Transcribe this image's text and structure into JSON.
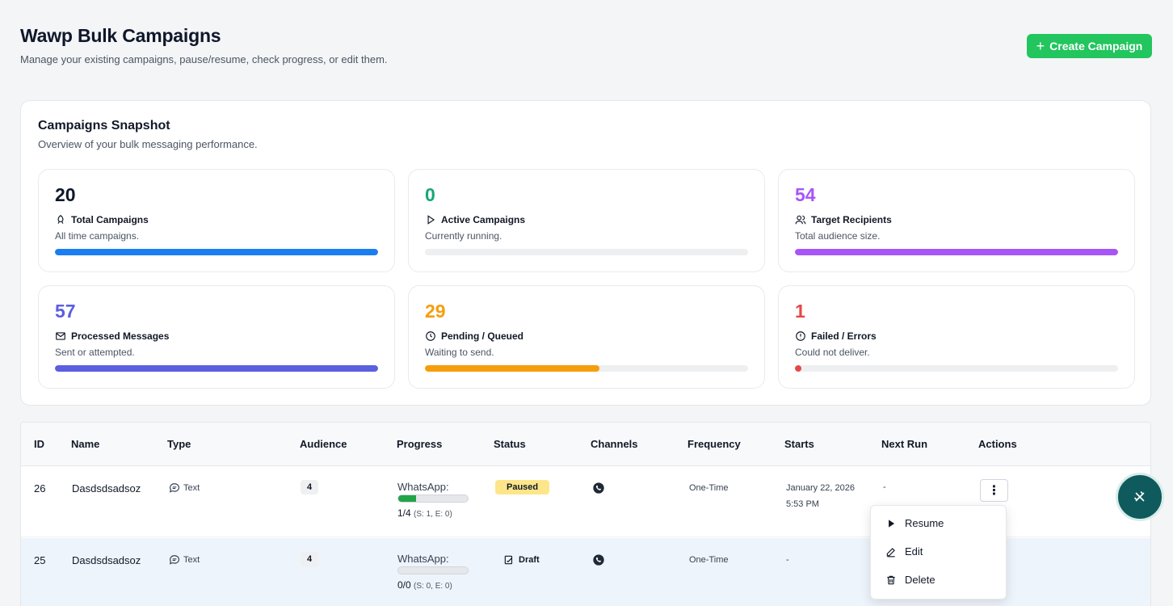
{
  "header": {
    "title": "Wawp Bulk Campaigns",
    "subtitle": "Manage your existing campaigns, pause/resume, check progress, or edit them.",
    "create_label": "Create Campaign"
  },
  "snapshot": {
    "title": "Campaigns Snapshot",
    "subtitle": "Overview of your bulk messaging performance.",
    "stats": [
      {
        "value": "20",
        "label": "Total Campaigns",
        "desc": "All time campaigns.",
        "color": "#0f172a",
        "bar_color": "#1a7ef2",
        "fill_fraction": 1.0,
        "icon": "rocket-icon"
      },
      {
        "value": "0",
        "label": "Active Campaigns",
        "desc": "Currently running.",
        "color": "#16a878",
        "bar_color": "#16a878",
        "fill_fraction": 0.0,
        "icon": "play-icon"
      },
      {
        "value": "54",
        "label": "Target Recipients",
        "desc": "Total audience size.",
        "color": "#a855f7",
        "bar_color": "#a855f7",
        "fill_fraction": 1.0,
        "icon": "users-icon"
      },
      {
        "value": "57",
        "label": "Processed Messages",
        "desc": "Sent or attempted.",
        "color": "#5b5fe0",
        "bar_color": "#5b5fe0",
        "fill_fraction": 1.0,
        "icon": "mail-icon"
      },
      {
        "value": "29",
        "label": "Pending / Queued",
        "desc": "Waiting to send.",
        "color": "#f59e0b",
        "bar_color": "#f59e0b",
        "fill_fraction": 0.54,
        "icon": "clock-icon"
      },
      {
        "value": "1",
        "label": "Failed / Errors",
        "desc": "Could not deliver.",
        "color": "#e54848",
        "bar_color": "#e54848",
        "fill_fraction": 0.02,
        "icon": "alert-icon"
      }
    ]
  },
  "table": {
    "columns": [
      "ID",
      "Name",
      "Type",
      "Audience",
      "Progress",
      "Status",
      "Channels",
      "Frequency",
      "Starts",
      "Next Run",
      "Actions"
    ],
    "rows": [
      {
        "id": "26",
        "name": "Dasdsdsadsoz",
        "type": "Text",
        "audience": "4",
        "progress_label": "WhatsApp:",
        "progress_fraction": 0.25,
        "progress_count": "1/4",
        "progress_detail": "(S: 1, E: 0)",
        "status": "Paused",
        "frequency": "One-Time",
        "starts_date": "January 22, 2026",
        "starts_time": "5:53 PM",
        "next_run": "-"
      },
      {
        "id": "25",
        "name": "Dasdsdsadsoz",
        "type": "Text",
        "audience": "4",
        "progress_label": "WhatsApp:",
        "progress_fraction": 0.0,
        "progress_count": "0/0",
        "progress_detail": "(S: 0, E: 0)",
        "status": "Draft",
        "frequency": "One-Time",
        "starts_date": "-",
        "starts_time": "",
        "next_run": ""
      }
    ]
  },
  "actions_menu": {
    "items": [
      "Resume",
      "Edit",
      "Delete"
    ]
  }
}
